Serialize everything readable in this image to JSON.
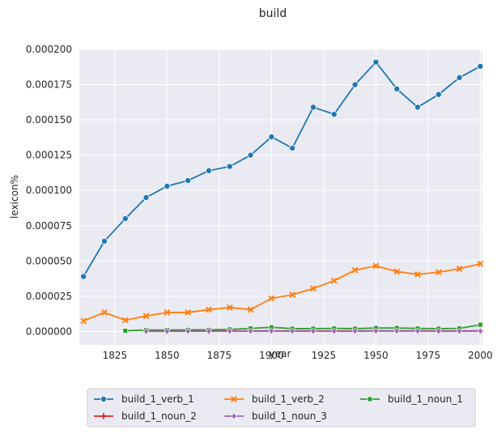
{
  "chart_data": {
    "type": "line",
    "title": "build",
    "xlabel": "year",
    "ylabel": "lexicon%",
    "xlim": [
      1808,
      2001
    ],
    "ylim": [
      -9.5e-06,
      0.0002
    ],
    "x_ticks": [
      1825,
      1850,
      1875,
      1900,
      1925,
      1950,
      1975,
      2000
    ],
    "x_tick_labels": [
      "1825",
      "1850",
      "1875",
      "1900",
      "1925",
      "1950",
      "1975",
      "2000"
    ],
    "y_ticks": [
      0.0,
      2.5e-05,
      5e-05,
      7.5e-05,
      0.0001,
      0.000125,
      0.00015,
      0.000175,
      0.0002
    ],
    "y_tick_labels": [
      "0.000000",
      "0.000025",
      "0.000050",
      "0.000075",
      "0.000100",
      "0.000125",
      "0.000150",
      "0.000175",
      "0.000200"
    ],
    "grid": true,
    "legend_position": "bottom-center",
    "series": [
      {
        "name": "build_1_verb_1",
        "color": "#1f77b4",
        "marker": "circle",
        "x": [
          1810,
          1820,
          1830,
          1840,
          1850,
          1860,
          1870,
          1880,
          1890,
          1900,
          1910,
          1920,
          1930,
          1940,
          1950,
          1960,
          1970,
          1980,
          1990,
          2000
        ],
        "y": [
          3.9e-05,
          6.4e-05,
          8e-05,
          9.5e-05,
          0.000103,
          0.000107,
          0.000114,
          0.000117,
          0.000125,
          0.000138,
          0.00013,
          0.000159,
          0.000154,
          0.000175,
          0.000191,
          0.000172,
          0.000159,
          0.000168,
          0.00018,
          0.000188
        ]
      },
      {
        "name": "build_1_verb_2",
        "color": "#ff7f0e",
        "marker": "x",
        "x": [
          1810,
          1820,
          1830,
          1840,
          1850,
          1860,
          1870,
          1880,
          1890,
          1900,
          1910,
          1920,
          1930,
          1940,
          1950,
          1960,
          1970,
          1980,
          1990,
          2000
        ],
        "y": [
          7.5e-06,
          1.35e-05,
          8e-06,
          1.1e-05,
          1.35e-05,
          1.35e-05,
          1.55e-05,
          1.7e-05,
          1.55e-05,
          2.35e-05,
          2.6e-05,
          3.05e-05,
          3.6e-05,
          4.35e-05,
          4.65e-05,
          4.25e-05,
          4.05e-05,
          4.2e-05,
          4.45e-05,
          4.8e-05
        ]
      },
      {
        "name": "build_1_noun_1",
        "color": "#2ca02c",
        "marker": "square",
        "x": [
          1830,
          1840,
          1850,
          1860,
          1870,
          1880,
          1890,
          1900,
          1910,
          1920,
          1930,
          1940,
          1950,
          1960,
          1970,
          1980,
          1990,
          2000
        ],
        "y": [
          5e-07,
          1e-06,
          1e-06,
          1.2e-06,
          1.2e-06,
          1.5e-06,
          2.2e-06,
          3e-06,
          2e-06,
          2e-06,
          2.2e-06,
          2e-06,
          2.5e-06,
          2.5e-06,
          2.2e-06,
          2e-06,
          2.2e-06,
          4.8e-06
        ]
      },
      {
        "name": "build_1_noun_2",
        "color": "#d62728",
        "marker": "plus",
        "x": [
          1840,
          1850,
          1860,
          1870,
          1880,
          1890,
          1900,
          1910,
          1920,
          1930,
          1940,
          1950,
          1960,
          1970,
          1980,
          1990,
          2000
        ],
        "y": [
          2e-07,
          2e-07,
          3e-07,
          3e-07,
          4e-07,
          4e-07,
          5e-07,
          4e-07,
          4e-07,
          4e-07,
          4e-07,
          5e-07,
          5e-07,
          5e-07,
          4e-07,
          4e-07,
          5e-07
        ]
      },
      {
        "name": "build_1_noun_3",
        "color": "#9467bd",
        "marker": "diamond",
        "x": [
          1840,
          1850,
          1860,
          1870,
          1880,
          1890,
          1900,
          1910,
          1920,
          1930,
          1940,
          1950,
          1960,
          1970,
          1980,
          1990,
          2000
        ],
        "y": [
          1e-07,
          1e-07,
          2e-07,
          2e-07,
          2e-07,
          2e-07,
          3e-07,
          2e-07,
          2e-07,
          2e-07,
          2e-07,
          3e-07,
          3e-07,
          3e-07,
          2e-07,
          2e-07,
          3e-07
        ]
      }
    ]
  }
}
